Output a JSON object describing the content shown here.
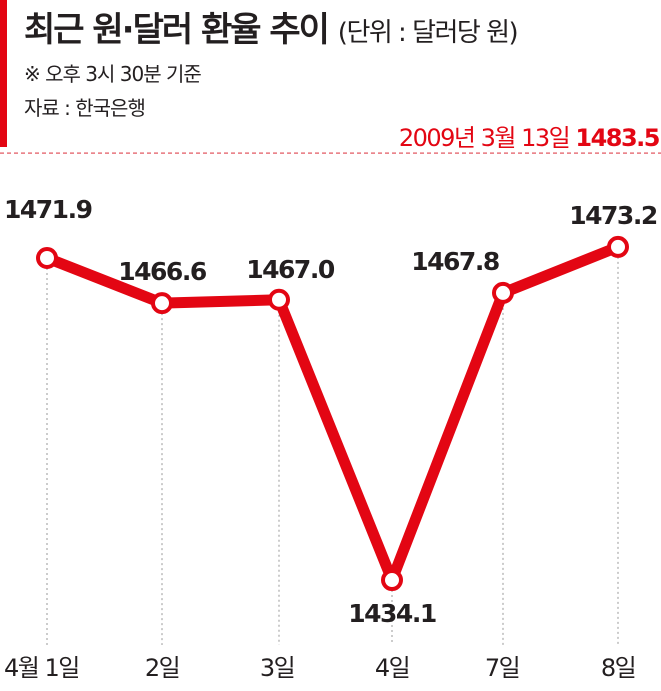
{
  "header": {
    "title": "최근 원·달러 환율 추이",
    "unit": "(단위 : 달러당 원)",
    "note": "※ 오후 3시 30분 기준",
    "source": "자료 : 한국은행",
    "reference_label": "2009년 3월 13일",
    "reference_value": "1483.5"
  },
  "colors": {
    "accent": "#e30613",
    "text": "#231f20",
    "grid": "#999999"
  },
  "chart_data": {
    "type": "line",
    "title": "최근 원·달러 환율 추이",
    "ylabel": "달러당 원",
    "categories": [
      "4월 1일",
      "2일",
      "3일",
      "4일",
      "7일",
      "8일"
    ],
    "values": [
      1471.9,
      1466.6,
      1467.0,
      1434.1,
      1467.8,
      1473.2
    ],
    "value_labels": [
      "1471.9",
      "1466.6",
      "1467.0",
      "1434.1",
      "1467.8",
      "1473.2"
    ],
    "reference_line": {
      "label": "2009년 3월 13일",
      "value": 1483.5
    },
    "grid": false
  }
}
